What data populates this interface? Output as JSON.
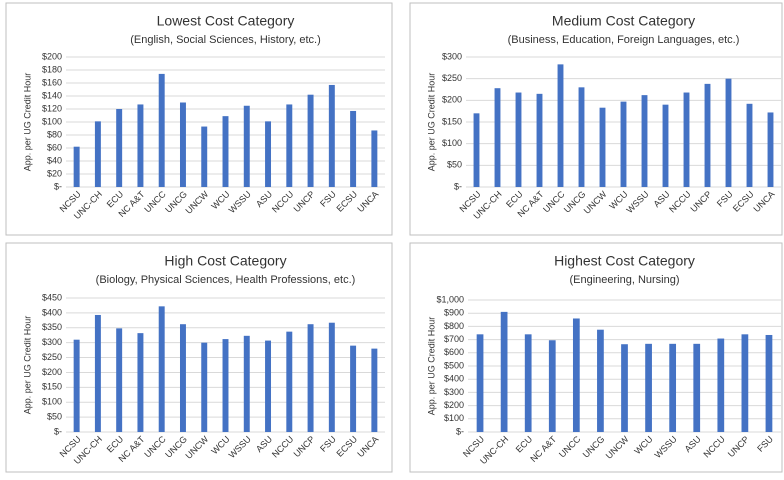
{
  "chart_data": [
    {
      "type": "bar",
      "title": "Lowest Cost Category",
      "subtitle": "(English, Social Sciences, History, etc.)",
      "y_label": "App. per UG Credit Hour",
      "categories": [
        "NCSU",
        "UNC-CH",
        "ECU",
        "NC A&T",
        "UNCC",
        "UNCG",
        "UNCW",
        "WCU",
        "WSSU",
        "ASU",
        "NCCU",
        "UNCP",
        "FSU",
        "ECSU",
        "UNCA"
      ],
      "values": [
        62,
        101,
        120,
        127,
        174,
        130,
        93,
        109,
        125,
        101,
        127,
        142,
        157,
        117,
        87
      ],
      "color": "#4472c4",
      "ylim": [
        0,
        200
      ],
      "yticks": [
        {
          "value": 0,
          "label": "$-"
        },
        {
          "value": 20,
          "label": "$20"
        },
        {
          "value": 40,
          "label": "$40"
        },
        {
          "value": 60,
          "label": "$60"
        },
        {
          "value": 80,
          "label": "$80"
        },
        {
          "value": 100,
          "label": "$100"
        },
        {
          "value": 120,
          "label": "$120"
        },
        {
          "value": 140,
          "label": "$140"
        },
        {
          "value": 160,
          "label": "$160"
        },
        {
          "value": 180,
          "label": "$180"
        },
        {
          "value": 200,
          "label": "$200"
        }
      ],
      "grid": true
    },
    {
      "type": "bar",
      "title": "Medium Cost Category",
      "subtitle": "(Business, Education, Foreign Languages, etc.)",
      "y_label": "App. per UG Credit Hour",
      "categories": [
        "NCSU",
        "UNC-CH",
        "ECU",
        "NC A&T",
        "UNCC",
        "UNCG",
        "UNCW",
        "WCU",
        "WSSU",
        "ASU",
        "NCCU",
        "UNCP",
        "FSU",
        "ECSU",
        "UNCA"
      ],
      "values": [
        170,
        228,
        218,
        215,
        283,
        230,
        183,
        197,
        212,
        190,
        218,
        238,
        250,
        192,
        172
      ],
      "color": "#4472c4",
      "ylim": [
        0,
        300
      ],
      "yticks": [
        {
          "value": 0,
          "label": "$-"
        },
        {
          "value": 50,
          "label": "$50"
        },
        {
          "value": 100,
          "label": "$100"
        },
        {
          "value": 150,
          "label": "$150"
        },
        {
          "value": 200,
          "label": "$200"
        },
        {
          "value": 250,
          "label": "$250"
        },
        {
          "value": 300,
          "label": "$300"
        }
      ],
      "grid": true
    },
    {
      "type": "bar",
      "title": "High Cost Category",
      "subtitle": "(Biology, Physical Sciences, Health Professions, etc.)",
      "y_label": "App. per UG Credit Hour",
      "categories": [
        "NCSU",
        "UNC-CH",
        "ECU",
        "NC A&T",
        "UNCC",
        "UNCG",
        "UNCW",
        "WCU",
        "WSSU",
        "ASU",
        "NCCU",
        "UNCP",
        "FSU",
        "ECSU",
        "UNCA"
      ],
      "values": [
        310,
        393,
        348,
        332,
        422,
        362,
        300,
        312,
        323,
        307,
        337,
        362,
        367,
        290,
        280
      ],
      "color": "#4472c4",
      "ylim": [
        0,
        450
      ],
      "yticks": [
        {
          "value": 0,
          "label": "$-"
        },
        {
          "value": 50,
          "label": "$50"
        },
        {
          "value": 100,
          "label": "$100"
        },
        {
          "value": 150,
          "label": "$150"
        },
        {
          "value": 200,
          "label": "$200"
        },
        {
          "value": 250,
          "label": "$250"
        },
        {
          "value": 300,
          "label": "$300"
        },
        {
          "value": 350,
          "label": "$350"
        },
        {
          "value": 400,
          "label": "$400"
        },
        {
          "value": 450,
          "label": "$450"
        }
      ],
      "grid": true
    },
    {
      "type": "bar",
      "title": "Highest Cost Category",
      "subtitle": "(Engineering, Nursing)",
      "y_label": "App. per UG Credit Hour",
      "categories": [
        "NCSU",
        "UNC-CH",
        "ECU",
        "NC A&T",
        "UNCC",
        "UNCG",
        "UNCW",
        "WCU",
        "WSSU",
        "ASU",
        "NCCU",
        "UNCP",
        "FSU"
      ],
      "values": [
        740,
        910,
        740,
        695,
        860,
        775,
        665,
        668,
        668,
        668,
        708,
        740,
        735
      ],
      "color": "#4472c4",
      "ylim": [
        0,
        1000
      ],
      "yticks": [
        {
          "value": 0,
          "label": "$-"
        },
        {
          "value": 100,
          "label": "$100"
        },
        {
          "value": 200,
          "label": "$200"
        },
        {
          "value": 300,
          "label": "$300"
        },
        {
          "value": 400,
          "label": "$400"
        },
        {
          "value": 500,
          "label": "$500"
        },
        {
          "value": 600,
          "label": "$600"
        },
        {
          "value": 700,
          "label": "$700"
        },
        {
          "value": 800,
          "label": "$800"
        },
        {
          "value": 900,
          "label": "$900"
        },
        {
          "value": 1000,
          "label": "$1,000"
        }
      ],
      "grid": true
    }
  ]
}
